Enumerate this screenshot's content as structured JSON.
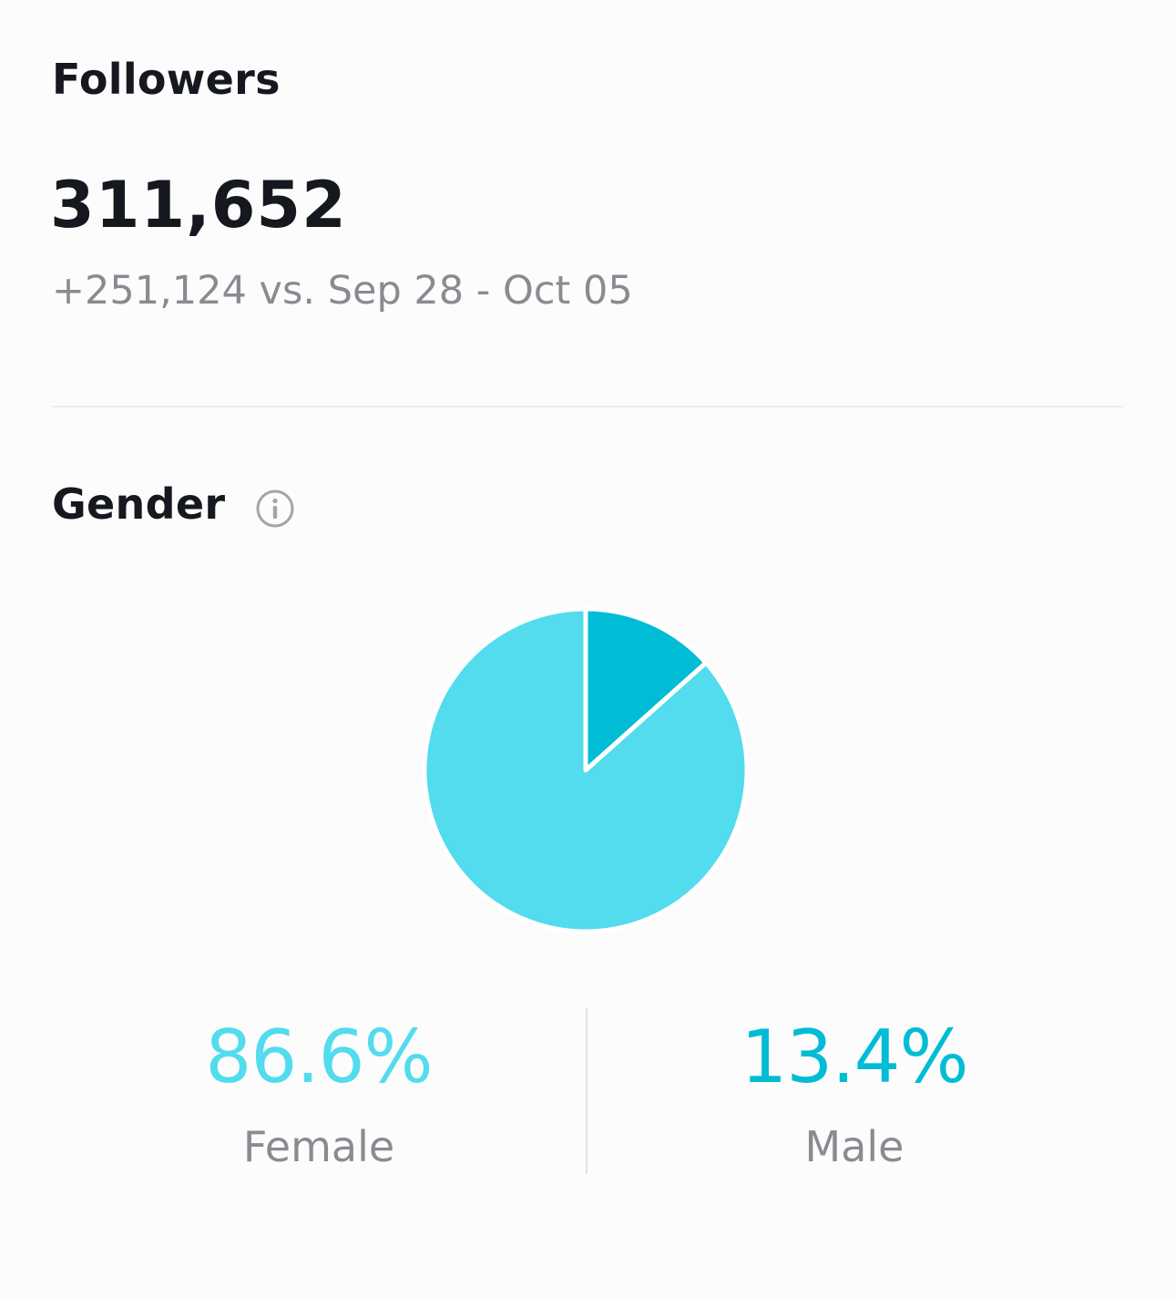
{
  "followers": {
    "title": "Followers",
    "count": "311,652",
    "change": "+251,124 vs. Sep 28 - Oct 05"
  },
  "gender": {
    "title": "Gender",
    "info_icon": "info-circle-icon"
  },
  "colors": {
    "female": "#52dcee",
    "male": "#00bcd4",
    "text_primary": "#16181f",
    "text_secondary": "#8a8b91"
  },
  "chart_data": {
    "type": "pie",
    "categories": [
      "Female",
      "Male"
    ],
    "values": [
      86.6,
      13.4
    ],
    "colors": [
      "#52dcee",
      "#00bcd4"
    ],
    "data_labels": [
      "86.6%",
      "13.4%"
    ]
  }
}
